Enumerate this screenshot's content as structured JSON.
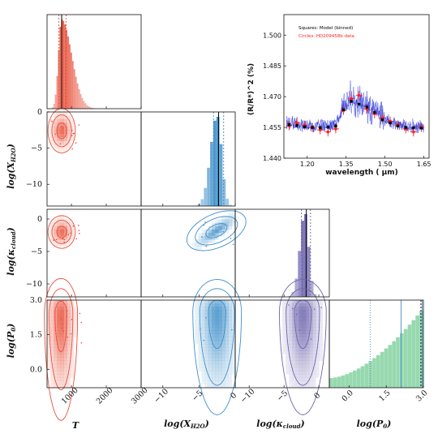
{
  "colors": {
    "T": "#e8503a",
    "XH2O": "#3f8fc9",
    "kcloud": "#6e64ad",
    "P0": "#52c07a",
    "model": "#000000",
    "data": "#ff1f1f",
    "spectrum": "#1f2bd6"
  },
  "corner": {
    "params": [
      "T",
      "log(X_H2O)",
      "log(κ_cloud)",
      "log(P0)"
    ],
    "xaxis_labels": [
      "T",
      "log(X",
      "H2O",
      ")",
      "log(κ",
      "cloud",
      ")",
      "log(P",
      "0",
      ")"
    ],
    "yaxis_labels": [
      "log(X",
      "H2O",
      ")",
      "log(κ",
      "cloud",
      ")",
      "log(P",
      "0",
      ")"
    ],
    "xticks": {
      "T": [
        "1000",
        "2000",
        "3000"
      ],
      "XH2O": [
        "−10",
        "−5",
        "0"
      ],
      "kcloud": [
        "−10",
        "−5",
        "0"
      ],
      "P0": [
        "0.0",
        "1.5",
        "3.0"
      ]
    },
    "yticks": {
      "XH2O": [
        "0",
        "−5",
        "−10"
      ],
      "kcloud": [
        "0",
        "−5",
        "−10"
      ],
      "P0": [
        "3.0",
        "1.5",
        "0.0"
      ]
    },
    "ranges": {
      "T": [
        300,
        3000
      ],
      "XH2O": [
        -13,
        0
      ],
      "kcloud": [
        -12,
        1.5
      ],
      "P0": [
        -0.8,
        3.0
      ]
    },
    "posteriors": {
      "T": {
        "median": 720,
        "lo": 640,
        "hi": 850
      },
      "XH2O": {
        "median": -2.3,
        "lo": -3.0,
        "hi": -1.6
      },
      "kcloud": {
        "median": -1.8,
        "lo": -2.5,
        "hi": -1.2
      },
      "P0": {
        "median": 2.9,
        "lo": 2.1,
        "hi": 2.95,
        "extra": 0.85
      }
    }
  },
  "chart_data": {
    "type": "scatter",
    "title": "",
    "xlabel": "wavelength ( μm)",
    "ylabel": "(R/R*)^2 (%)",
    "xlim": [
      1.11,
      1.67
    ],
    "ylim": [
      1.44,
      1.51
    ],
    "xticks": [
      "1.20",
      "1.35",
      "1.50",
      "1.65"
    ],
    "yticks": [
      "1.440",
      "1.455",
      "1.470",
      "1.485",
      "1.500"
    ],
    "legend": [
      "Squares: Model (binned)",
      "Circles: HD209458b data"
    ],
    "legend_position": "top-left",
    "series": [
      {
        "name": "Squares: Model (binned)",
        "x": [
          1.13,
          1.16,
          1.19,
          1.22,
          1.25,
          1.28,
          1.31,
          1.34,
          1.37,
          1.4,
          1.43,
          1.46,
          1.49,
          1.52,
          1.55,
          1.58,
          1.61,
          1.64
        ],
        "y": [
          1.4563,
          1.456,
          1.4553,
          1.455,
          1.4548,
          1.4552,
          1.4557,
          1.4636,
          1.4677,
          1.4663,
          1.4649,
          1.4623,
          1.4587,
          1.4572,
          1.4557,
          1.455,
          1.4548,
          1.4547
        ]
      },
      {
        "name": "Circles: HD209458b data",
        "x": [
          1.13,
          1.16,
          1.19,
          1.22,
          1.25,
          1.28,
          1.31,
          1.34,
          1.37,
          1.4,
          1.43,
          1.46,
          1.49,
          1.52,
          1.55,
          1.58,
          1.61,
          1.64
        ],
        "y": [
          1.4558,
          1.4572,
          1.4561,
          1.4549,
          1.4538,
          1.4528,
          1.4543,
          1.4633,
          1.469,
          1.4706,
          1.464,
          1.4616,
          1.4596,
          1.458,
          1.4562,
          1.4543,
          1.4528,
          1.455
        ],
        "yerr": 0.0022,
        "xerr": 0.012
      }
    ]
  }
}
